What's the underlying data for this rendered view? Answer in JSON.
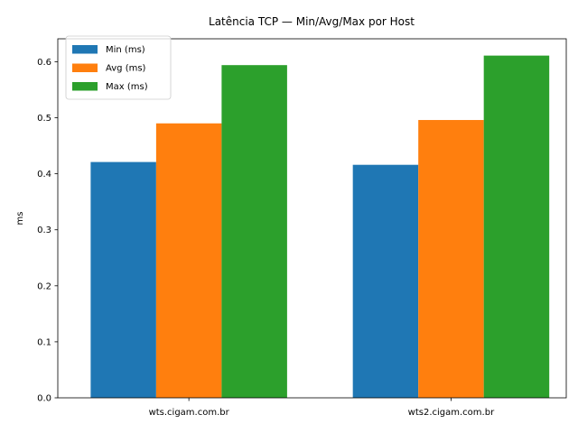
{
  "chart_data": {
    "type": "bar",
    "title": "Latência TCP — Min/Avg/Max por Host",
    "xlabel": "",
    "ylabel": "ms",
    "categories": [
      "wts.cigam.com.br",
      "wts2.cigam.com.br"
    ],
    "series": [
      {
        "name": "Min (ms)",
        "color": "#1f77b4",
        "values": [
          0.421,
          0.416
        ]
      },
      {
        "name": "Avg (ms)",
        "color": "#ff7f0e",
        "values": [
          0.49,
          0.496
        ]
      },
      {
        "name": "Max (ms)",
        "color": "#2ca02c",
        "values": [
          0.594,
          0.611
        ]
      }
    ],
    "ylim": [
      0,
      0.641
    ],
    "yticks": [
      "0.0",
      "0.1",
      "0.2",
      "0.3",
      "0.4",
      "0.5",
      "0.6"
    ],
    "grid": false,
    "legend": "top-left"
  }
}
